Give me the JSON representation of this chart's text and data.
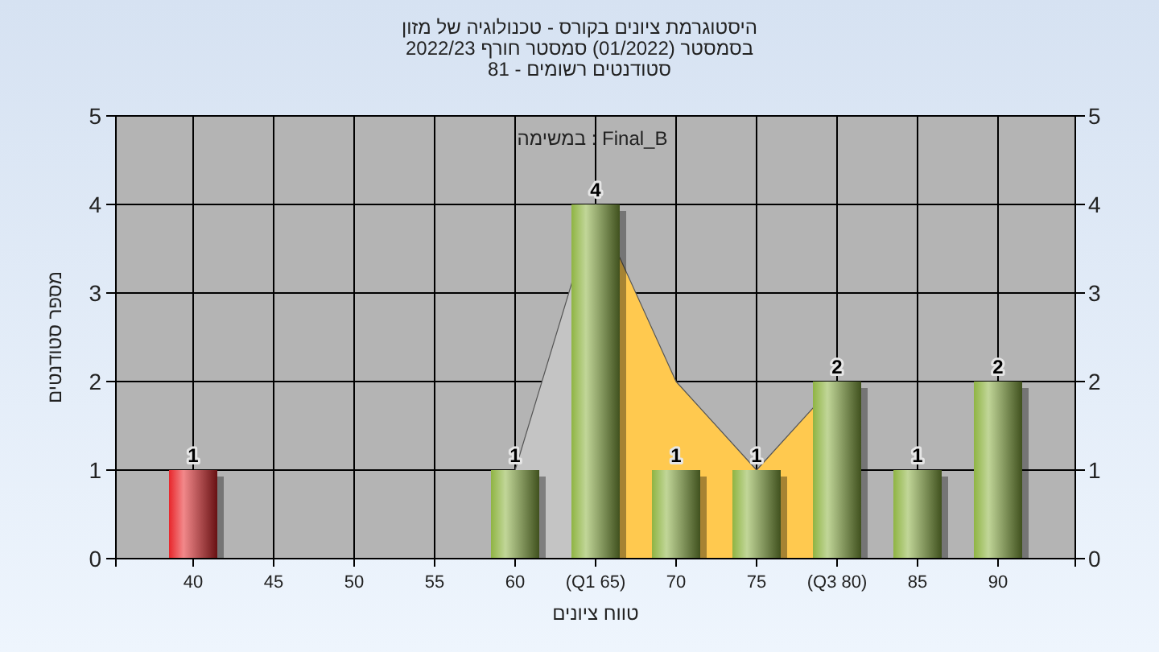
{
  "chart_data": {
    "type": "bar",
    "title": "היסטוגרמת ציונים בקורס - טכנולוגיה של מזון\nבסמסטר  (01/2022)  סמסטר חורף 2022/23\nסטודנטים רשומים - 81",
    "xlabel": "טווח ציונים",
    "ylabel": "מספר סטודנטים",
    "annotations": [
      "במשימה : Final_B"
    ],
    "categories": [
      "40",
      "45",
      "50",
      "55",
      "60",
      "(Q1 65)",
      "70",
      "75",
      "(Q3 80)",
      "85",
      "90"
    ],
    "series": [
      {
        "type": "area",
        "color": "#c4c4c4",
        "values": [
          null,
          null,
          null,
          null,
          1,
          4,
          null,
          null,
          null,
          null,
          null
        ]
      },
      {
        "type": "area",
        "color": "#ffc94f",
        "values": [
          null,
          null,
          null,
          null,
          null,
          4,
          2,
          1,
          2,
          null,
          null
        ]
      },
      {
        "colors": [
          "#e8262b",
          "#8fb443",
          "#8fb443",
          "#8fb443",
          "#8fb443",
          "#8fb443",
          "#8fb443",
          "#8fb443",
          "#8fb443",
          "#8fb443",
          "#8fb443"
        ],
        "values": [
          1,
          0,
          0,
          0,
          1,
          4,
          1,
          1,
          2,
          1,
          2
        ],
        "value_labels": [
          "1",
          null,
          null,
          null,
          "1",
          "4",
          "1",
          "1",
          "2",
          "1",
          "2"
        ]
      }
    ],
    "ylim": [
      0,
      5
    ],
    "yticks": [
      0,
      1,
      2,
      3,
      4,
      5
    ],
    "y2lim": [
      0,
      5
    ],
    "y2ticks": [
      0,
      1,
      2,
      3,
      4,
      5
    ],
    "grid": true
  }
}
